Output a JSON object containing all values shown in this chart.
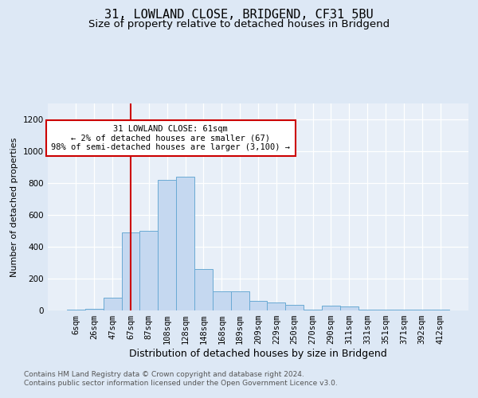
{
  "title1": "31, LOWLAND CLOSE, BRIDGEND, CF31 5BU",
  "title2": "Size of property relative to detached houses in Bridgend",
  "xlabel": "Distribution of detached houses by size in Bridgend",
  "ylabel": "Number of detached properties",
  "categories": [
    "6sqm",
    "26sqm",
    "47sqm",
    "67sqm",
    "87sqm",
    "108sqm",
    "128sqm",
    "148sqm",
    "168sqm",
    "189sqm",
    "209sqm",
    "229sqm",
    "250sqm",
    "270sqm",
    "290sqm",
    "311sqm",
    "331sqm",
    "351sqm",
    "371sqm",
    "392sqm",
    "412sqm"
  ],
  "values": [
    5,
    10,
    80,
    490,
    500,
    820,
    840,
    260,
    120,
    120,
    60,
    50,
    35,
    5,
    30,
    25,
    5,
    5,
    5,
    5,
    5
  ],
  "bar_color": "#c5d8f0",
  "bar_edge_color": "#6aaad4",
  "vline_x": 3.0,
  "vline_color": "#cc0000",
  "annotation_text": "31 LOWLAND CLOSE: 61sqm\n← 2% of detached houses are smaller (67)\n98% of semi-detached houses are larger (3,100) →",
  "annotation_box_facecolor": "white",
  "annotation_box_edgecolor": "#cc0000",
  "footer1": "Contains HM Land Registry data © Crown copyright and database right 2024.",
  "footer2": "Contains public sector information licensed under the Open Government Licence v3.0.",
  "fig_facecolor": "#dde8f5",
  "axes_facecolor": "#e8eff8",
  "ylim": [
    0,
    1300
  ],
  "yticks": [
    0,
    200,
    400,
    600,
    800,
    1000,
    1200
  ],
  "title1_fontsize": 11,
  "title2_fontsize": 9.5,
  "xlabel_fontsize": 9,
  "ylabel_fontsize": 8,
  "annot_fontsize": 7.5,
  "tick_fontsize": 7.5,
  "footer_fontsize": 6.5
}
